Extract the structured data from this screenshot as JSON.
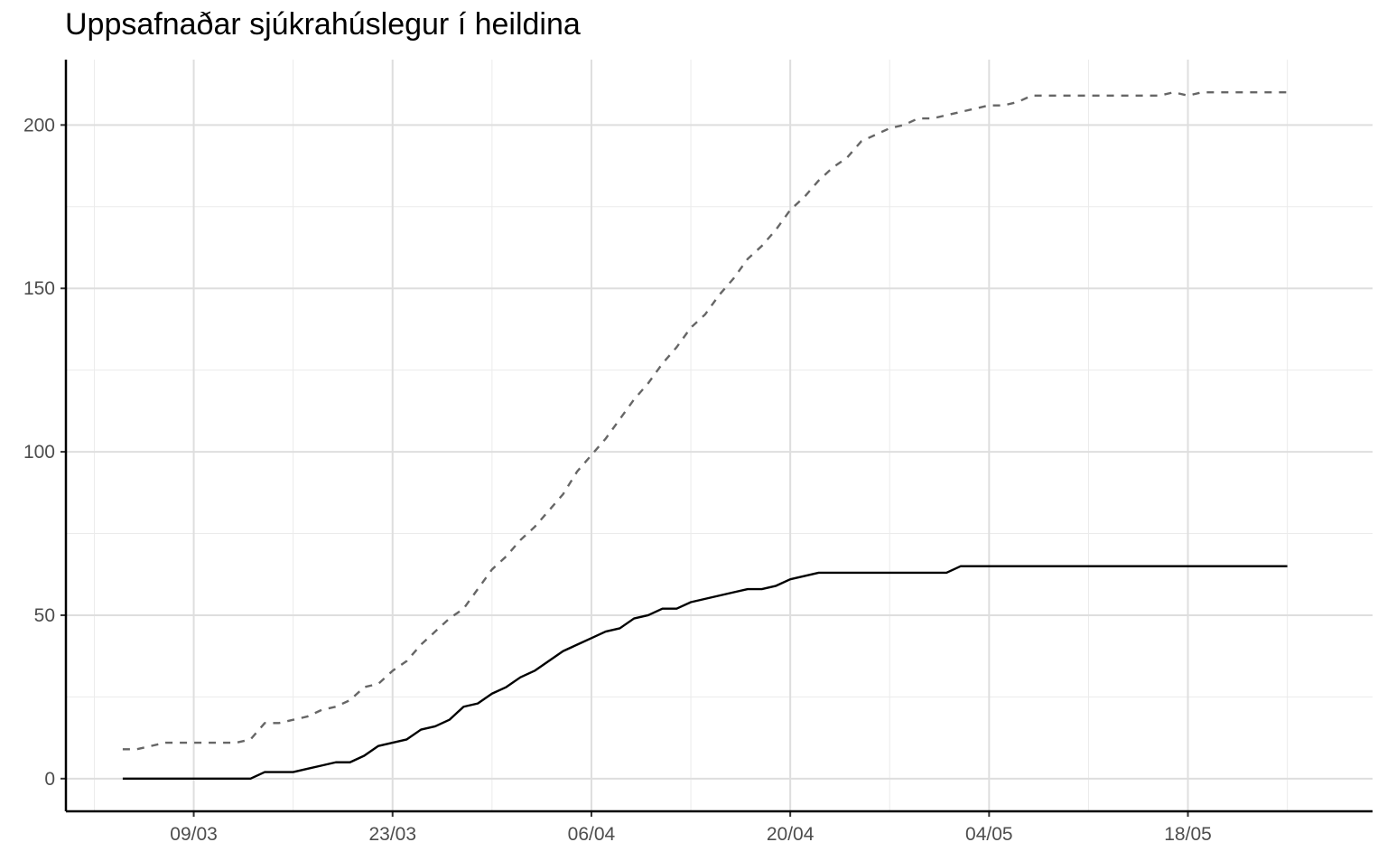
{
  "chart_data": {
    "type": "line",
    "title": "Uppsafnaðar sjúkrahúslegur í heildina",
    "xlabel": "",
    "ylabel": "",
    "x_axis": {
      "type": "date",
      "range": [
        "2020-02-29",
        "2020-05-31"
      ],
      "ticks": [
        {
          "date": "2020-03-09",
          "label": "09/03"
        },
        {
          "date": "2020-03-23",
          "label": "23/03"
        },
        {
          "date": "2020-04-06",
          "label": "06/04"
        },
        {
          "date": "2020-04-20",
          "label": "20/04"
        },
        {
          "date": "2020-05-04",
          "label": "04/05"
        },
        {
          "date": "2020-05-18",
          "label": "18/05"
        }
      ]
    },
    "y_axis": {
      "ylim": [
        -10,
        220
      ],
      "ticks": [
        {
          "value": 0,
          "label": "0"
        },
        {
          "value": 50,
          "label": "50"
        },
        {
          "value": 100,
          "label": "100"
        },
        {
          "value": 150,
          "label": "150"
        },
        {
          "value": 200,
          "label": "200"
        }
      ]
    },
    "grid": true,
    "legend": "none",
    "series": [
      {
        "style": "dashed",
        "color": "#666666",
        "points": [
          [
            "2020-03-04",
            9
          ],
          [
            "2020-03-05",
            9
          ],
          [
            "2020-03-06",
            10
          ],
          [
            "2020-03-07",
            11
          ],
          [
            "2020-03-08",
            11
          ],
          [
            "2020-03-09",
            11
          ],
          [
            "2020-03-10",
            11
          ],
          [
            "2020-03-11",
            11
          ],
          [
            "2020-03-12",
            11
          ],
          [
            "2020-03-13",
            12
          ],
          [
            "2020-03-14",
            17
          ],
          [
            "2020-03-15",
            17
          ],
          [
            "2020-03-16",
            18
          ],
          [
            "2020-03-17",
            19
          ],
          [
            "2020-03-18",
            21
          ],
          [
            "2020-03-19",
            22
          ],
          [
            "2020-03-20",
            24
          ],
          [
            "2020-03-21",
            28
          ],
          [
            "2020-03-22",
            29
          ],
          [
            "2020-03-23",
            33
          ],
          [
            "2020-03-24",
            36
          ],
          [
            "2020-03-25",
            41
          ],
          [
            "2020-03-26",
            45
          ],
          [
            "2020-03-27",
            49
          ],
          [
            "2020-03-28",
            52
          ],
          [
            "2020-03-29",
            58
          ],
          [
            "2020-03-30",
            64
          ],
          [
            "2020-03-31",
            68
          ],
          [
            "2020-04-01",
            73
          ],
          [
            "2020-04-02",
            77
          ],
          [
            "2020-04-03",
            82
          ],
          [
            "2020-04-04",
            87
          ],
          [
            "2020-04-05",
            94
          ],
          [
            "2020-04-06",
            99
          ],
          [
            "2020-04-07",
            104
          ],
          [
            "2020-04-08",
            110
          ],
          [
            "2020-04-09",
            116
          ],
          [
            "2020-04-10",
            121
          ],
          [
            "2020-04-11",
            127
          ],
          [
            "2020-04-12",
            132
          ],
          [
            "2020-04-13",
            138
          ],
          [
            "2020-04-14",
            142
          ],
          [
            "2020-04-15",
            148
          ],
          [
            "2020-04-16",
            153
          ],
          [
            "2020-04-17",
            159
          ],
          [
            "2020-04-18",
            163
          ],
          [
            "2020-04-19",
            168
          ],
          [
            "2020-04-20",
            174
          ],
          [
            "2020-04-21",
            178
          ],
          [
            "2020-04-22",
            183
          ],
          [
            "2020-04-23",
            187
          ],
          [
            "2020-04-24",
            190
          ],
          [
            "2020-04-25",
            195
          ],
          [
            "2020-04-26",
            197
          ],
          [
            "2020-04-27",
            199
          ],
          [
            "2020-04-28",
            200
          ],
          [
            "2020-04-29",
            202
          ],
          [
            "2020-04-30",
            202
          ],
          [
            "2020-05-01",
            203
          ],
          [
            "2020-05-02",
            204
          ],
          [
            "2020-05-03",
            205
          ],
          [
            "2020-05-04",
            206
          ],
          [
            "2020-05-05",
            206
          ],
          [
            "2020-05-06",
            207
          ],
          [
            "2020-05-07",
            209
          ],
          [
            "2020-05-08",
            209
          ],
          [
            "2020-05-09",
            209
          ],
          [
            "2020-05-10",
            209
          ],
          [
            "2020-05-11",
            209
          ],
          [
            "2020-05-12",
            209
          ],
          [
            "2020-05-13",
            209
          ],
          [
            "2020-05-14",
            209
          ],
          [
            "2020-05-15",
            209
          ],
          [
            "2020-05-16",
            209
          ],
          [
            "2020-05-17",
            210
          ],
          [
            "2020-05-18",
            209
          ],
          [
            "2020-05-19",
            210
          ],
          [
            "2020-05-20",
            210
          ],
          [
            "2020-05-21",
            210
          ],
          [
            "2020-05-22",
            210
          ],
          [
            "2020-05-23",
            210
          ],
          [
            "2020-05-24",
            210
          ],
          [
            "2020-05-25",
            210
          ]
        ]
      },
      {
        "style": "solid",
        "color": "#000000",
        "points": [
          [
            "2020-03-04",
            0
          ],
          [
            "2020-03-05",
            0
          ],
          [
            "2020-03-06",
            0
          ],
          [
            "2020-03-07",
            0
          ],
          [
            "2020-03-08",
            0
          ],
          [
            "2020-03-09",
            0
          ],
          [
            "2020-03-10",
            0
          ],
          [
            "2020-03-11",
            0
          ],
          [
            "2020-03-12",
            0
          ],
          [
            "2020-03-13",
            0
          ],
          [
            "2020-03-14",
            2
          ],
          [
            "2020-03-15",
            2
          ],
          [
            "2020-03-16",
            2
          ],
          [
            "2020-03-17",
            3
          ],
          [
            "2020-03-18",
            4
          ],
          [
            "2020-03-19",
            5
          ],
          [
            "2020-03-20",
            5
          ],
          [
            "2020-03-21",
            7
          ],
          [
            "2020-03-22",
            10
          ],
          [
            "2020-03-23",
            11
          ],
          [
            "2020-03-24",
            12
          ],
          [
            "2020-03-25",
            15
          ],
          [
            "2020-03-26",
            16
          ],
          [
            "2020-03-27",
            18
          ],
          [
            "2020-03-28",
            22
          ],
          [
            "2020-03-29",
            23
          ],
          [
            "2020-03-30",
            26
          ],
          [
            "2020-03-31",
            28
          ],
          [
            "2020-04-01",
            31
          ],
          [
            "2020-04-02",
            33
          ],
          [
            "2020-04-03",
            36
          ],
          [
            "2020-04-04",
            39
          ],
          [
            "2020-04-05",
            41
          ],
          [
            "2020-04-06",
            43
          ],
          [
            "2020-04-07",
            45
          ],
          [
            "2020-04-08",
            46
          ],
          [
            "2020-04-09",
            49
          ],
          [
            "2020-04-10",
            50
          ],
          [
            "2020-04-11",
            52
          ],
          [
            "2020-04-12",
            52
          ],
          [
            "2020-04-13",
            54
          ],
          [
            "2020-04-14",
            55
          ],
          [
            "2020-04-15",
            56
          ],
          [
            "2020-04-16",
            57
          ],
          [
            "2020-04-17",
            58
          ],
          [
            "2020-04-18",
            58
          ],
          [
            "2020-04-19",
            59
          ],
          [
            "2020-04-20",
            61
          ],
          [
            "2020-04-21",
            62
          ],
          [
            "2020-04-22",
            63
          ],
          [
            "2020-04-23",
            63
          ],
          [
            "2020-04-24",
            63
          ],
          [
            "2020-04-25",
            63
          ],
          [
            "2020-04-26",
            63
          ],
          [
            "2020-04-27",
            63
          ],
          [
            "2020-04-28",
            63
          ],
          [
            "2020-04-29",
            63
          ],
          [
            "2020-04-30",
            63
          ],
          [
            "2020-05-01",
            63
          ],
          [
            "2020-05-02",
            65
          ],
          [
            "2020-05-03",
            65
          ],
          [
            "2020-05-04",
            65
          ],
          [
            "2020-05-05",
            65
          ],
          [
            "2020-05-06",
            65
          ],
          [
            "2020-05-07",
            65
          ],
          [
            "2020-05-08",
            65
          ],
          [
            "2020-05-09",
            65
          ],
          [
            "2020-05-10",
            65
          ],
          [
            "2020-05-11",
            65
          ],
          [
            "2020-05-12",
            65
          ],
          [
            "2020-05-13",
            65
          ],
          [
            "2020-05-14",
            65
          ],
          [
            "2020-05-15",
            65
          ],
          [
            "2020-05-16",
            65
          ],
          [
            "2020-05-17",
            65
          ],
          [
            "2020-05-18",
            65
          ],
          [
            "2020-05-19",
            65
          ],
          [
            "2020-05-20",
            65
          ],
          [
            "2020-05-21",
            65
          ],
          [
            "2020-05-22",
            65
          ],
          [
            "2020-05-23",
            65
          ],
          [
            "2020-05-24",
            65
          ],
          [
            "2020-05-25",
            65
          ]
        ]
      }
    ]
  }
}
